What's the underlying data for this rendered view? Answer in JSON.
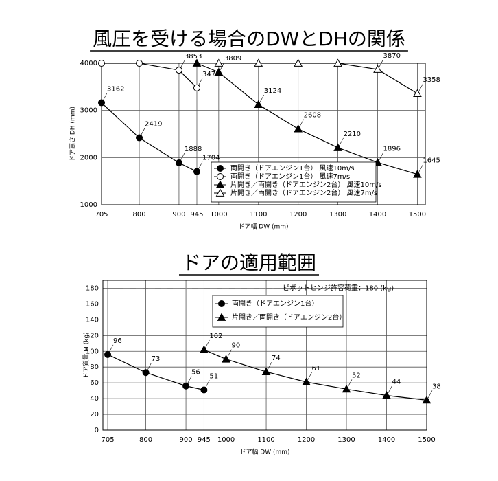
{
  "chart_data": [
    {
      "type": "line",
      "title": "風圧を受ける場合のDWとDHの関係",
      "x_label": "ドア幅 DW (mm)",
      "y_label": "ドア高さ DH (mm)",
      "xlim": [
        705,
        1520
      ],
      "xticks": [
        705,
        800,
        900,
        945,
        1000,
        1100,
        1200,
        1300,
        1400,
        1500
      ],
      "ylim": [
        1000,
        4000
      ],
      "yticks": [
        1000,
        2000,
        3000,
        4000
      ],
      "grid": true,
      "legend": "lower right",
      "series": [
        {
          "name": "両開き（ドアエンジン1台） 風速10m/s",
          "color": "#000000",
          "marker": "circle",
          "x": [
            705,
            800,
            900,
            945
          ],
          "values": [
            3162,
            2419,
            1888,
            1704
          ]
        },
        {
          "name": "両開き（ドアエンジン1台） 風速7m/s",
          "color": "#000000",
          "marker": "open-circle",
          "x": [
            705,
            800,
            900,
            945
          ],
          "values": [
            4000,
            4000,
            3853,
            3478
          ]
        },
        {
          "name": "片開き／両開き（ドアエンジン2台） 風速10m/s",
          "color": "#000000",
          "marker": "triangle",
          "x": [
            945,
            1000,
            1100,
            1200,
            1300,
            1400,
            1500
          ],
          "values": [
            4000,
            3809,
            3124,
            2608,
            2210,
            1896,
            1645
          ]
        },
        {
          "name": "片開き／両開き（ドアエンジン2台） 風速7m/s",
          "color": "#000000",
          "marker": "open-triangle",
          "x": [
            1000,
            1100,
            1200,
            1300,
            1400,
            1500
          ],
          "values": [
            4000,
            4000,
            4000,
            4000,
            3870,
            3358
          ]
        }
      ]
    },
    {
      "type": "line",
      "title": "ドアの適用範囲",
      "x_label": "ドア幅 DW (mm)",
      "y_label": "ドア質量 M (kg)",
      "xlim": [
        693,
        1500
      ],
      "xticks": [
        705,
        800,
        900,
        945,
        1000,
        1100,
        1200,
        1300,
        1400,
        1500
      ],
      "ylim": [
        0,
        190
      ],
      "yticks": [
        0,
        20,
        40,
        60,
        80,
        100,
        120,
        140,
        160,
        180
      ],
      "grid": true,
      "legend": "upper right",
      "reference_line": {
        "value": 180,
        "label": "ピボットヒンジ許容荷重：180 (kg)"
      },
      "series": [
        {
          "name": "両開き（ドアエンジン1台）",
          "color": "#000000",
          "marker": "circle",
          "x": [
            705,
            800,
            900,
            945
          ],
          "values": [
            96,
            73,
            56,
            51
          ]
        },
        {
          "name": "片開き／両開き（ドアエンジン2台）",
          "color": "#000000",
          "marker": "triangle",
          "x": [
            945,
            1000,
            1100,
            1200,
            1300,
            1400,
            1500
          ],
          "values": [
            102,
            90,
            74,
            61,
            52,
            44,
            38
          ]
        }
      ]
    }
  ]
}
